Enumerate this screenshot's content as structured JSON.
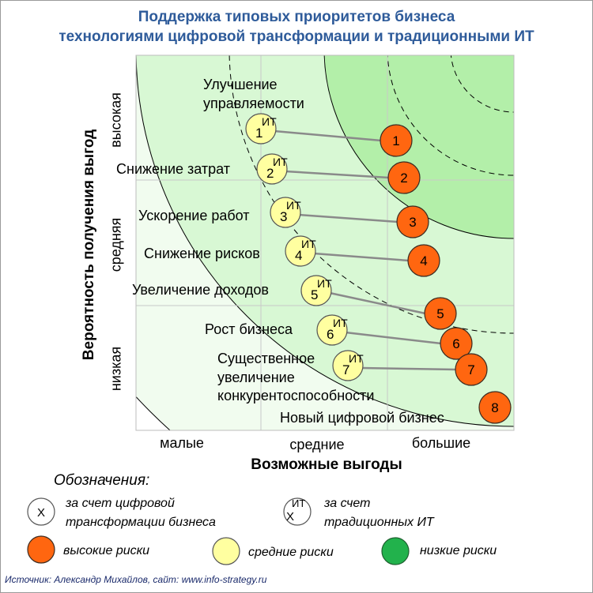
{
  "title_lines": [
    "Поддержка типовых приоритетов бизнеса",
    "технологиями цифровой трансформации и традиционными ИТ"
  ],
  "y_axis_title": "Вероятность получения выгод",
  "y_levels": [
    "высокая",
    "средняя",
    "низкая"
  ],
  "x_axis_title": "Возможные выгоды",
  "x_levels": [
    "малые",
    "средние",
    "большие"
  ],
  "it_tag": "ИТ",
  "priorities": [
    {
      "num": "1",
      "lines": [
        "Улучшение",
        "управляемости"
      ]
    },
    {
      "num": "2",
      "lines": [
        "Снижение затрат"
      ]
    },
    {
      "num": "3",
      "lines": [
        "Ускорение работ"
      ]
    },
    {
      "num": "4",
      "lines": [
        "Снижение рисков"
      ]
    },
    {
      "num": "5",
      "lines": [
        "Увеличение доходов"
      ]
    },
    {
      "num": "6",
      "lines": [
        "Рост бизнеса"
      ]
    },
    {
      "num": "7",
      "lines": [
        "Существенное",
        "увеличение",
        "конкурентоспособности"
      ]
    },
    {
      "num": "8",
      "lines": [
        "Новый цифровой бизнес"
      ]
    }
  ],
  "legend": {
    "title": "Обозначения:",
    "digital_symbol": "X",
    "digital_lines": [
      "за счет цифровой",
      "трансформации бизнеса"
    ],
    "it_symbol": "X",
    "it_tag": "ИТ",
    "it_lines": [
      "за счет",
      "традиционных ИТ"
    ],
    "high_risk": "высокие риски",
    "medium_risk": "средние риски",
    "low_risk": "низкие риски"
  },
  "colors": {
    "title": "#2e5b9a",
    "zone_outer": "#f1fcef",
    "zone_light": "#d8f8d4",
    "zone_medium": "#b3efa9",
    "zone_strong": "#4ad888",
    "high_risk": "#ff6610",
    "medium_risk": "#ffffa0",
    "low_risk": "#22b24c",
    "connector": "#8a8a8a",
    "gridline": "#c8c8c8"
  },
  "source": "Источник: Александр Михайлов, сайт: www.info-strategy.ru"
}
